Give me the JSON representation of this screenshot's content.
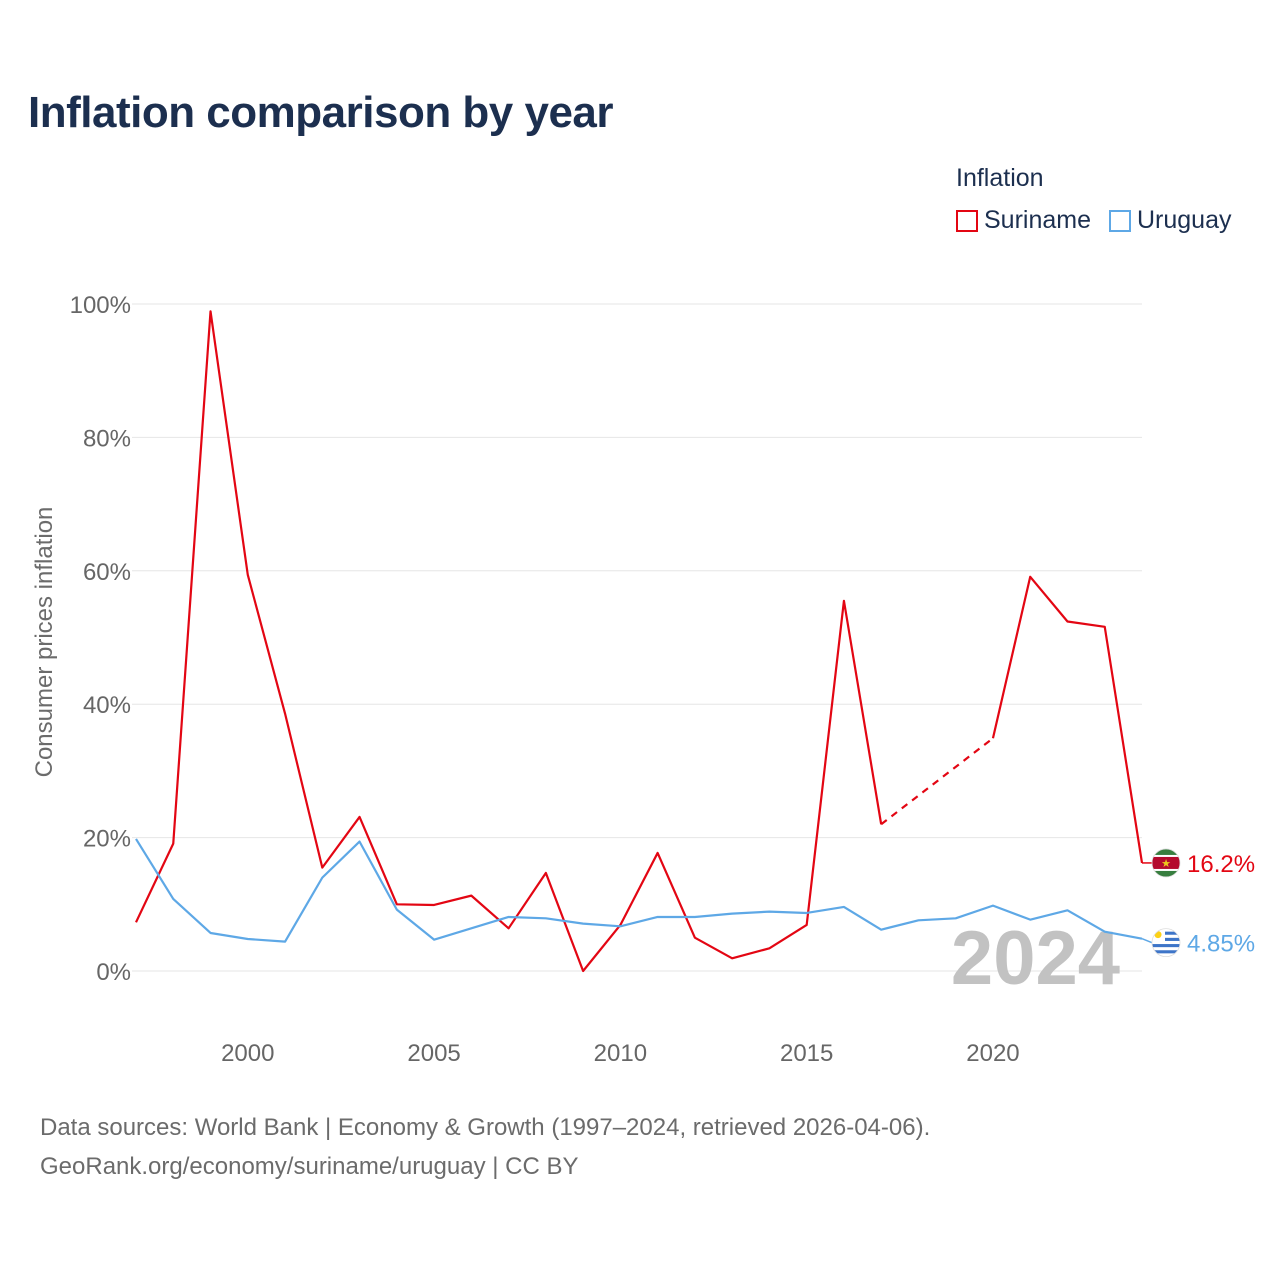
{
  "title": "Inflation comparison by year",
  "legend": {
    "title": "Inflation",
    "items": [
      {
        "label": "Suriname",
        "color": "#e30613"
      },
      {
        "label": "Uruguay",
        "color": "#5ea8e6"
      }
    ]
  },
  "footer": {
    "line1": "Data sources: World Bank | Economy & Growth (1997–2024, retrieved 2026-04-06).",
    "line2": "GeoRank.org/economy/suriname/uruguay | CC BY"
  },
  "chart_data": {
    "type": "line",
    "title": "Inflation comparison by year",
    "xlabel": "",
    "ylabel": "Consumer prices inflation",
    "xlim": [
      1997,
      2024
    ],
    "ylim": [
      0,
      100
    ],
    "grid": true,
    "legend_position": "top-right",
    "year_watermark": "2024",
    "x_ticks": [
      {
        "value": 2000,
        "label": "2000"
      },
      {
        "value": 2005,
        "label": "2005"
      },
      {
        "value": 2010,
        "label": "2010"
      },
      {
        "value": 2015,
        "label": "2015"
      },
      {
        "value": 2020,
        "label": "2020"
      }
    ],
    "y_ticks": [
      {
        "value": 0,
        "label": "0%"
      },
      {
        "value": 20,
        "label": "20%"
      },
      {
        "value": 40,
        "label": "40%"
      },
      {
        "value": 60,
        "label": "60%"
      },
      {
        "value": 80,
        "label": "80%"
      },
      {
        "value": 100,
        "label": "100%"
      }
    ],
    "x": [
      1997,
      1998,
      1999,
      2000,
      2001,
      2002,
      2003,
      2004,
      2005,
      2006,
      2007,
      2008,
      2009,
      2010,
      2011,
      2012,
      2013,
      2014,
      2015,
      2016,
      2017,
      2018,
      2019,
      2020,
      2021,
      2022,
      2023,
      2024
    ],
    "series": [
      {
        "name": "Suriname",
        "color": "#e30613",
        "values": [
          7.3,
          19.1,
          98.9,
          59.4,
          38.6,
          15.5,
          23.1,
          10.0,
          9.9,
          11.3,
          6.4,
          14.7,
          0.0,
          6.9,
          17.7,
          5.0,
          1.9,
          3.4,
          6.9,
          55.5,
          22.0,
          null,
          null,
          34.9,
          59.1,
          52.4,
          51.6,
          16.2
        ],
        "interpolated": [
          {
            "from": 2017,
            "to": 2020
          }
        ],
        "end_label": "16.2%",
        "flag": "suriname-flag"
      },
      {
        "name": "Uruguay",
        "color": "#5ea8e6",
        "values": [
          19.8,
          10.8,
          5.7,
          4.8,
          4.4,
          14.0,
          19.4,
          9.2,
          4.7,
          6.4,
          8.1,
          7.9,
          7.1,
          6.7,
          8.1,
          8.1,
          8.6,
          8.9,
          8.7,
          9.6,
          6.2,
          7.6,
          7.9,
          9.8,
          7.7,
          9.1,
          5.9,
          4.85
        ],
        "end_label": "4.85%",
        "flag": "uruguay-flag"
      }
    ]
  }
}
